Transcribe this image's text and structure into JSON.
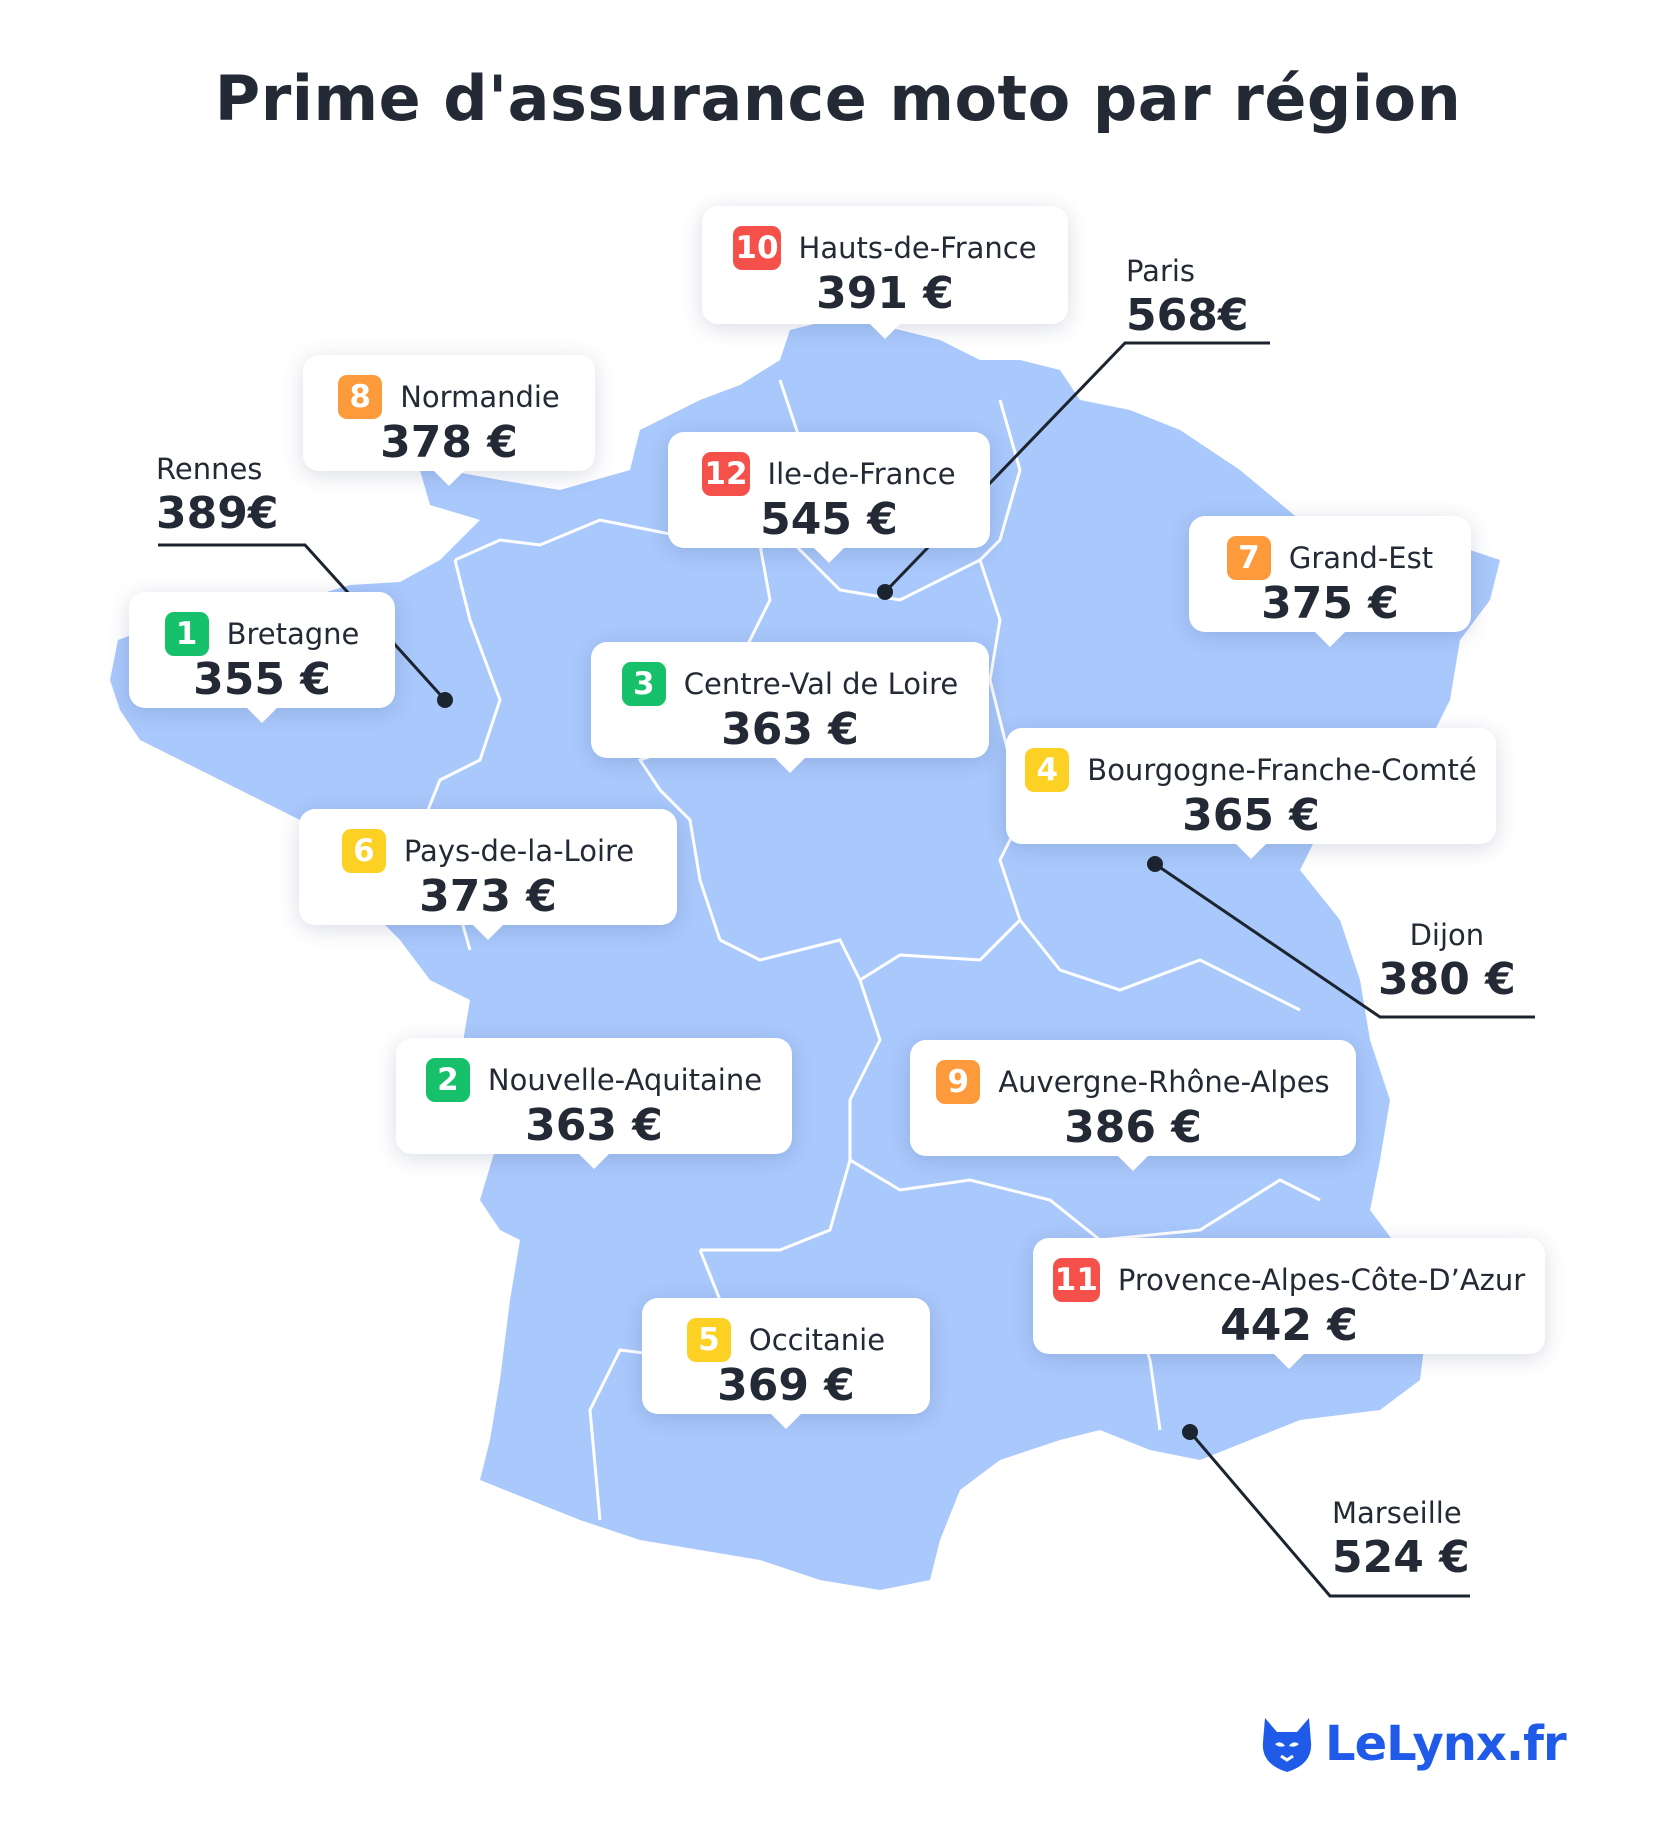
{
  "title": "Prime d'assurance moto par région",
  "colors": {
    "map_fill": "#a9c8fb",
    "map_border": "#ffffff",
    "rank_green": "#17c16b",
    "rank_yellow": "#fdd024",
    "rank_orange": "#fd9a3c",
    "rank_red": "#f6504a",
    "text": "#232a35",
    "brand_blue": "#1f5be8"
  },
  "regions": [
    {
      "rank": "10",
      "name": "Hauts-de-France",
      "price": "391 €",
      "color": "#f6504a"
    },
    {
      "rank": "8",
      "name": "Normandie",
      "price": "378 €",
      "color": "#fd9a3c"
    },
    {
      "rank": "12",
      "name": "Ile-de-France",
      "price": "545 €",
      "color": "#f6504a"
    },
    {
      "rank": "7",
      "name": "Grand-Est",
      "price": "375 €",
      "color": "#fd9a3c"
    },
    {
      "rank": "1",
      "name": "Bretagne",
      "price": "355 €",
      "color": "#17c16b"
    },
    {
      "rank": "3",
      "name": "Centre-Val de Loire",
      "price": "363 €",
      "color": "#17c16b"
    },
    {
      "rank": "4",
      "name": "Bourgogne-Franche-Comté",
      "price": "365 €",
      "color": "#fdd024"
    },
    {
      "rank": "6",
      "name": "Pays-de-la-Loire",
      "price": "373 €",
      "color": "#fdd024"
    },
    {
      "rank": "2",
      "name": "Nouvelle-Aquitaine",
      "price": "363 €",
      "color": "#17c16b"
    },
    {
      "rank": "9",
      "name": "Auvergne-Rhône-Alpes",
      "price": "386 €",
      "color": "#fd9a3c"
    },
    {
      "rank": "11",
      "name": "Provence-Alpes-Côte-D’Azur",
      "price": "442 €",
      "color": "#f6504a"
    },
    {
      "rank": "5",
      "name": "Occitanie",
      "price": "369 €",
      "color": "#fdd024"
    }
  ],
  "cities": [
    {
      "name": "Rennes",
      "price": "389€"
    },
    {
      "name": "Paris",
      "price": "568€"
    },
    {
      "name": "Dijon",
      "price": "380 €"
    },
    {
      "name": "Marseille",
      "price": "524 €"
    }
  ],
  "logo": {
    "text": "LeLynx.fr",
    "icon": "lynx-head-icon"
  }
}
